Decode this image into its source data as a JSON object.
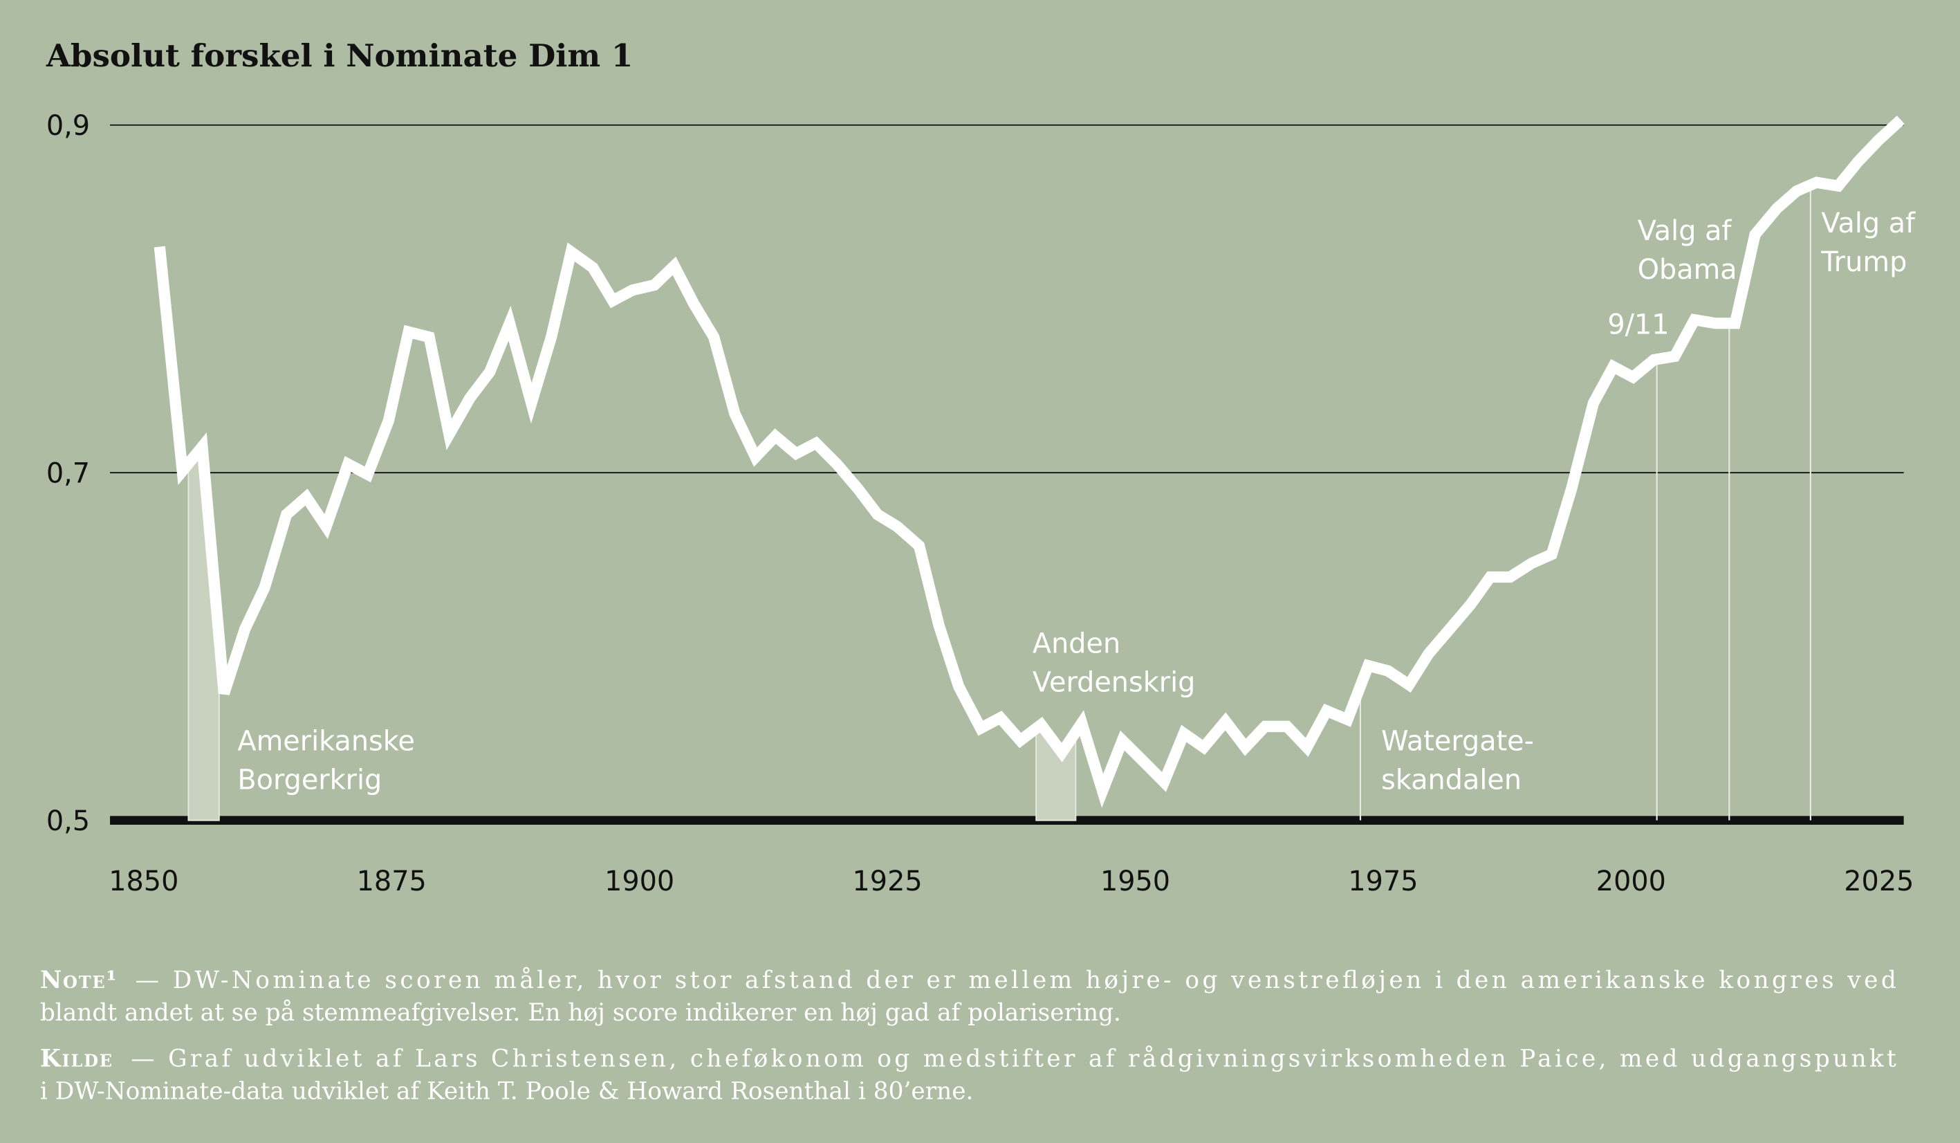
{
  "chart_data": {
    "type": "line",
    "title": "Absolut forskel i Nominate Dim 1",
    "x": [
      1851.6,
      1853.9,
      1855.9,
      1858.1,
      1860.2,
      1862.2,
      1864.4,
      1866.4,
      1868.4,
      1870.6,
      1872.6,
      1874.7,
      1876.7,
      1878.8,
      1880.8,
      1882.9,
      1884.9,
      1886.9,
      1889.1,
      1891.1,
      1893.1,
      1895.3,
      1897.3,
      1899.3,
      1901.5,
      1903.5,
      1905.5,
      1907.5,
      1909.6,
      1911.7,
      1913.7,
      1915.8,
      1917.8,
      1919.9,
      1922.0,
      1924.0,
      1926.0,
      1928.2,
      1930.2,
      1932.2,
      1934.4,
      1936.4,
      1938.4,
      1940.5,
      1942.6,
      1944.6,
      1946.7,
      1948.7,
      1950.8,
      1952.9,
      1954.9,
      1956.9,
      1959.1,
      1961.1,
      1963.1,
      1965.3,
      1967.3,
      1969.3,
      1971.4,
      1973.5,
      1975.5,
      1977.6,
      1979.6,
      1981.7,
      1983.8,
      1985.8,
      1987.8,
      1990.0,
      1992.0,
      1994.0,
      1996.2,
      1998.2,
      2000.2,
      2002.3,
      2004.4,
      2006.4,
      2008.5,
      2010.5,
      2012.5,
      2014.7,
      2016.7,
      2018.7,
      2020.9,
      2022.9,
      2024.9,
      2027.2
    ],
    "series": [
      {
        "color": "#ffffff",
        "values": [
          0.83,
          0.701,
          0.715,
          0.573,
          0.61,
          0.634,
          0.676,
          0.686,
          0.669,
          0.705,
          0.699,
          0.73,
          0.781,
          0.778,
          0.722,
          0.743,
          0.758,
          0.786,
          0.74,
          0.778,
          0.827,
          0.818,
          0.799,
          0.805,
          0.808,
          0.819,
          0.797,
          0.778,
          0.734,
          0.709,
          0.721,
          0.711,
          0.717,
          0.705,
          0.691,
          0.676,
          0.669,
          0.658,
          0.612,
          0.577,
          0.553,
          0.559,
          0.546,
          0.555,
          0.539,
          0.556,
          0.517,
          0.546,
          0.534,
          0.522,
          0.55,
          0.542,
          0.557,
          0.542,
          0.554,
          0.554,
          0.542,
          0.563,
          0.558,
          0.589,
          0.586,
          0.578,
          0.596,
          0.61,
          0.624,
          0.64,
          0.64,
          0.648,
          0.653,
          0.691,
          0.74,
          0.761,
          0.755,
          0.765,
          0.767,
          0.788,
          0.786,
          0.786,
          0.837,
          0.852,
          0.862,
          0.867,
          0.865,
          0.879,
          0.891,
          0.903
        ]
      }
    ],
    "xlim": [
      1846.6,
      2027.5
    ],
    "xticks": [
      1850,
      1875,
      1900,
      1925,
      1950,
      1975,
      2000,
      2025
    ],
    "ylim": [
      0.5,
      0.9
    ],
    "yticks": [
      {
        "value": 0.5,
        "label": "0,5"
      },
      {
        "value": 0.7,
        "label": "0,7"
      },
      {
        "value": 0.9,
        "label": "0,9"
      }
    ],
    "grid": true,
    "annotations": [
      {
        "x": [
          1854.5,
          1857.6
        ],
        "text": [
          "Amerikanske",
          "Borgerkrig"
        ]
      },
      {
        "x": [
          1940.0,
          1944.0
        ],
        "text": [
          "Anden",
          "Verdenskrig"
        ]
      },
      {
        "x": [
          1972.7
        ],
        "text": [
          "Watergate-",
          "skandalen"
        ]
      },
      {
        "x": [
          2002.6
        ],
        "text": [
          "9/11"
        ]
      },
      {
        "x": [
          2009.9
        ],
        "text": [
          "Valg af",
          "Obama"
        ]
      },
      {
        "x": [
          2018.1
        ],
        "text": [
          "Valg af",
          "Trump"
        ]
      }
    ],
    "notes": [
      {
        "label": "Note¹",
        "text": [
          "— DW-Nominate scoren måler, hvor stor afstand der er mellem højre- og venstrefløjen i den amerikanske kongres ved",
          "blandt andet at se på stemmeafgivelser. En høj score indikerer en høj gad af polarisering."
        ]
      },
      {
        "label": "Kilde",
        "text": [
          "— Graf udviklet af Lars Christensen, cheføkonom og medstifter af rådgivningsvirksomheden Paice, med udgangspunkt",
          "i DW-Nominate-data udviklet af Keith T. Poole & Howard Rosenthal i 80’erne."
        ]
      }
    ]
  }
}
